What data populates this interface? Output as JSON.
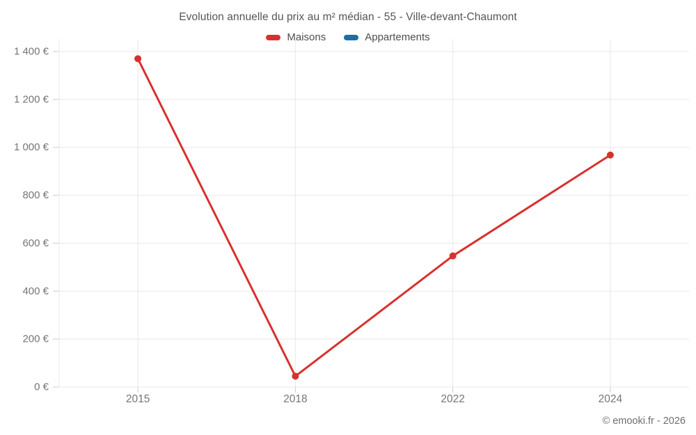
{
  "title": "Evolution annuelle du prix au m² médian - 55 - Ville-devant-Chaumont",
  "legend": [
    {
      "label": "Maisons",
      "color": "#d7312e"
    },
    {
      "label": "Appartements",
      "color": "#1c6ea4"
    }
  ],
  "footer": "© emooki.fr - 2026",
  "colors": {
    "grid": "#e8e8e8",
    "tick_mark": "#cccccc",
    "axis_text": "#757575",
    "title_text": "#555555"
  },
  "chart_data": {
    "type": "line",
    "title": "Evolution annuelle du prix au m² médian - 55 - Ville-devant-Chaumont",
    "categories": [
      "2015",
      "2018",
      "2022",
      "2024"
    ],
    "series": [
      {
        "name": "Maisons",
        "color": "#d7312e",
        "values": [
          1370,
          45,
          547,
          968
        ]
      },
      {
        "name": "Appartements",
        "color": "#1c6ea4",
        "values": []
      }
    ],
    "xlabel": "",
    "ylabel": "",
    "ylim": [
      0,
      1400
    ],
    "y_tick_step": 200,
    "y_tick_labels": [
      "0 €",
      "200 €",
      "400 €",
      "600 €",
      "800 €",
      "1 000 €",
      "1 200 €",
      "1 400 €"
    ],
    "grid": true,
    "legend_position": "top",
    "currency_suffix": " €"
  }
}
